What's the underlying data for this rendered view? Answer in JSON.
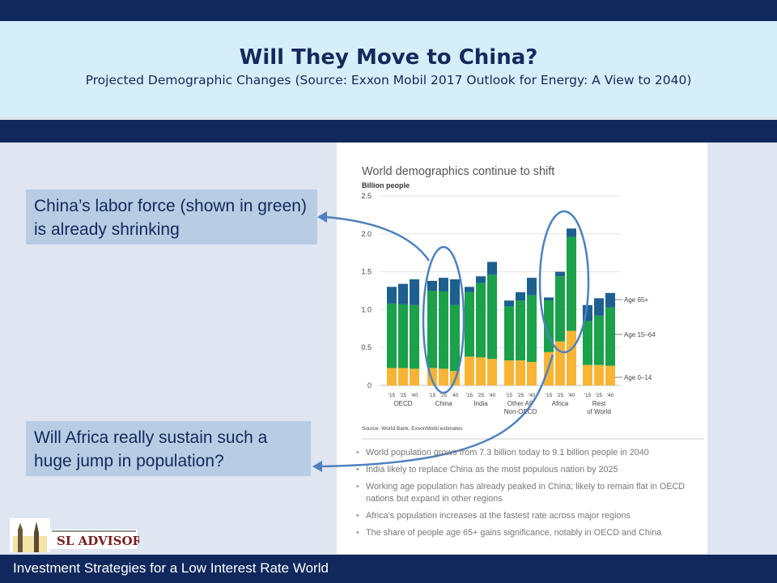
{
  "slide": {
    "title": "Will They Move to China?",
    "subtitle": "Projected Demographic Changes (Source: Exxon Mobil 2017 Outlook for Energy: A View to 2040)",
    "footer": "Investment Strategies for a Low Interest Rate World"
  },
  "callouts": [
    "China’s labor force (shown in green) is already shrinking",
    "Will Africa really sustain such a huge jump in population?"
  ],
  "logo": {
    "text": "SL ADVISORS"
  },
  "colors": {
    "dark_navy": "#10285c",
    "light_blue_band": "#d6eefa",
    "callout_fill": "#b8cce4",
    "annotation_blue": "#4f81bd",
    "age_0_14": "#f8b535",
    "age_15_64": "#1aa14a",
    "age_65_plus": "#1d5f8f"
  },
  "chart_data": {
    "type": "bar",
    "stacked": true,
    "title": "World demographics continue to shift",
    "ylabel": "Billion people",
    "ylim": [
      0,
      2.5
    ],
    "yticks": [
      "0",
      "0.5",
      "1.0",
      "1.5",
      "2.0",
      "2.5"
    ],
    "groups": [
      "OECD",
      "China",
      "India",
      "Other AP\nNon-OECD",
      "Africa",
      "Rest\nof World"
    ],
    "years": [
      "'15",
      "'25",
      "'40"
    ],
    "series": [
      {
        "name": "Age 0–14",
        "values": [
          [
            0.23,
            0.23,
            0.22
          ],
          [
            0.23,
            0.22,
            0.19
          ],
          [
            0.38,
            0.37,
            0.35
          ],
          [
            0.33,
            0.33,
            0.31
          ],
          [
            0.44,
            0.58,
            0.72
          ],
          [
            0.27,
            0.27,
            0.26
          ]
        ]
      },
      {
        "name": "Age 15–64",
        "values": [
          [
            0.85,
            0.84,
            0.84
          ],
          [
            1.02,
            1.02,
            0.87
          ],
          [
            0.85,
            0.98,
            1.11
          ],
          [
            0.71,
            0.79,
            0.88
          ],
          [
            0.68,
            0.86,
            1.24
          ],
          [
            0.58,
            0.65,
            0.77
          ]
        ]
      },
      {
        "name": "Age 65+",
        "values": [
          [
            0.22,
            0.27,
            0.34
          ],
          [
            0.13,
            0.18,
            0.34
          ],
          [
            0.07,
            0.09,
            0.17
          ],
          [
            0.08,
            0.11,
            0.23
          ],
          [
            0.04,
            0.06,
            0.11
          ],
          [
            0.21,
            0.23,
            0.19
          ]
        ]
      }
    ],
    "source": "Source: World Bank, ExxonMobil estimates",
    "grid": true,
    "legend_placement": "right of bars"
  },
  "bullets": [
    "World population grows from 7.3 billion today to 9.1 billion people in 2040",
    "India likely to replace China as the most populous nation by 2025",
    "Working age population has already peaked in China; likely to remain flat in OECD nations but expand in other regions",
    "Africa’s population increases at the fastest rate across major regions",
    "The share of people age 65+ gains significance, notably in OECD and China"
  ]
}
